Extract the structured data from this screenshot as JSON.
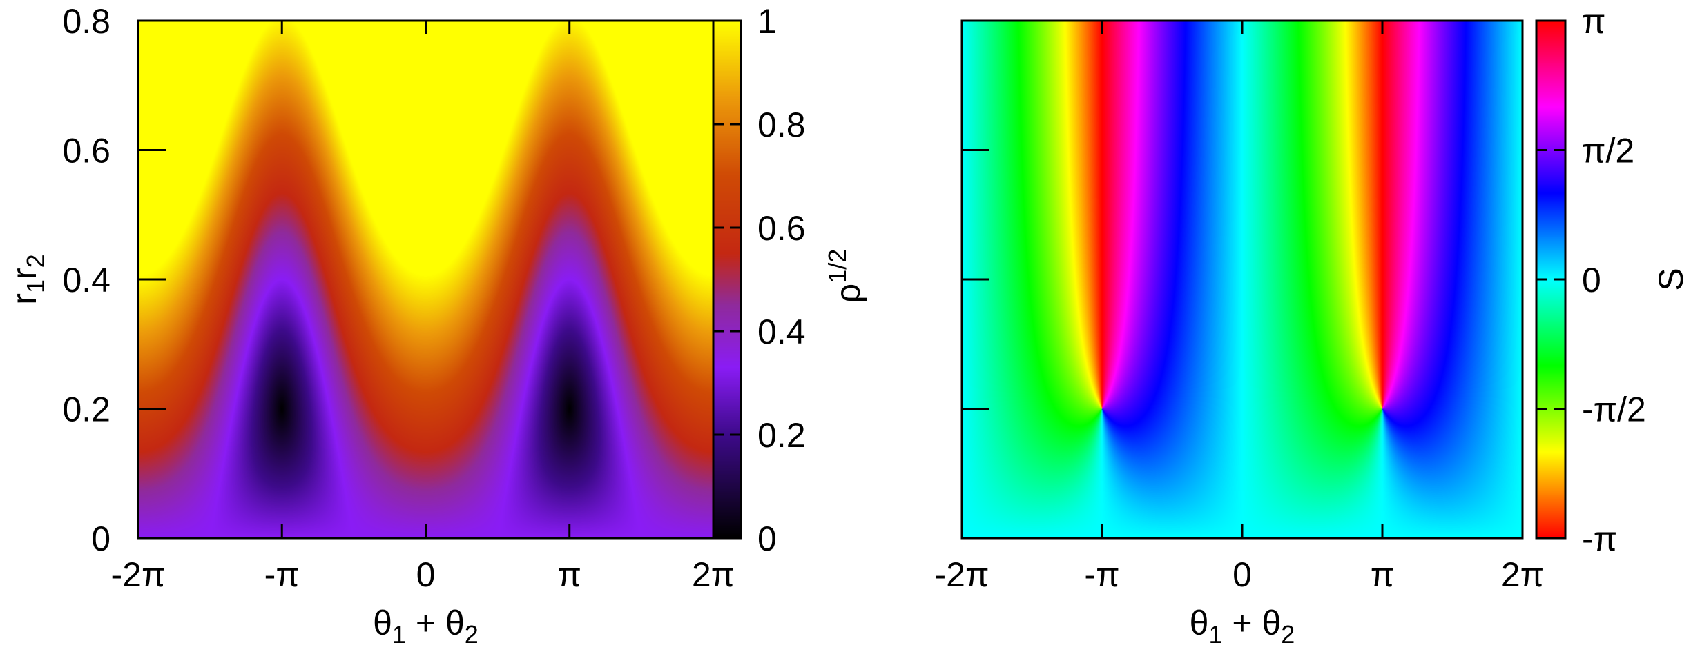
{
  "chart_data": [
    {
      "type": "heatmap",
      "colormap": "black-purple-red-yellow",
      "title": "",
      "xlabel": "θ1 + θ2",
      "xlabel_parts": {
        "a": "θ",
        "a_sub": "1",
        "plus": " + ",
        "b": "θ",
        "b_sub": "2"
      },
      "ylabel": "r1r2",
      "ylabel_parts": {
        "a": "r",
        "a_sub": "1",
        "b": "r",
        "b_sub": "2"
      },
      "xlim": [
        -6.2832,
        6.2832
      ],
      "ylim": [
        0,
        0.8
      ],
      "x_ticks": [
        {
          "value": -6.2832,
          "label": "-2π"
        },
        {
          "value": -3.1416,
          "label": "-π"
        },
        {
          "value": 0,
          "label": "0"
        },
        {
          "value": 3.1416,
          "label": "π"
        },
        {
          "value": 6.2832,
          "label": "2π"
        }
      ],
      "y_ticks": [
        {
          "value": 0,
          "label": "0"
        },
        {
          "value": 0.2,
          "label": "0.2"
        },
        {
          "value": 0.4,
          "label": "0.4"
        },
        {
          "value": 0.6,
          "label": "0.6"
        },
        {
          "value": 0.8,
          "label": "0.8"
        }
      ],
      "colorbar": {
        "label": "ρ1/2",
        "label_parts": {
          "base": "ρ",
          "sup": "1/2"
        },
        "range": [
          0,
          1
        ],
        "ticks": [
          {
            "value": 0,
            "label": "0"
          },
          {
            "value": 0.2,
            "label": "0.2"
          },
          {
            "value": 0.4,
            "label": "0.4"
          },
          {
            "value": 0.6,
            "label": "0.6"
          },
          {
            "value": 0.8,
            "label": "0.8"
          },
          {
            "value": 1,
            "label": "1"
          }
        ]
      },
      "colorbar_stops": [
        {
          "value": 0.0,
          "color": "#000000"
        },
        {
          "value": 0.2,
          "color": "#3d0a8a"
        },
        {
          "value": 0.33,
          "color": "#8a1cf5"
        },
        {
          "value": 0.45,
          "color": "#8f2a9c"
        },
        {
          "value": 0.55,
          "color": "#c42812"
        },
        {
          "value": 0.7,
          "color": "#cf4a05"
        },
        {
          "value": 0.85,
          "color": "#ec9a0a"
        },
        {
          "value": 1.0,
          "color": "#ffff00"
        }
      ],
      "features": {
        "minima_at": [
          {
            "x": -3.1416,
            "y": 0.2,
            "value": 0
          },
          {
            "x": 3.1416,
            "y": 0.2,
            "value": 0
          }
        ],
        "value_at_bottom": 0.33,
        "value_top_at_x_0": 1.0,
        "value_top_at_x_pi": 0.7
      }
    },
    {
      "type": "heatmap",
      "colormap": "cyclic-hsv",
      "title": "",
      "xlabel": "θ1 + θ2",
      "xlabel_parts": {
        "a": "θ",
        "a_sub": "1",
        "plus": " + ",
        "b": "θ",
        "b_sub": "2"
      },
      "ylabel": "",
      "xlim": [
        -6.2832,
        6.2832
      ],
      "ylim": [
        0,
        0.8
      ],
      "x_ticks": [
        {
          "value": -6.2832,
          "label": "-2π"
        },
        {
          "value": -3.1416,
          "label": "-π"
        },
        {
          "value": 0,
          "label": "0"
        },
        {
          "value": 3.1416,
          "label": "π"
        },
        {
          "value": 6.2832,
          "label": "2π"
        }
      ],
      "y_ticks": [
        {
          "value": 0,
          "label": ""
        },
        {
          "value": 0.2,
          "label": ""
        },
        {
          "value": 0.4,
          "label": ""
        },
        {
          "value": 0.6,
          "label": ""
        },
        {
          "value": 0.8,
          "label": ""
        }
      ],
      "colorbar": {
        "label": "S",
        "range": [
          -3.1416,
          3.1416
        ],
        "ticks": [
          {
            "value": -3.1416,
            "label": "-π"
          },
          {
            "value": -1.5708,
            "label": "-π/2"
          },
          {
            "value": 0,
            "label": "0"
          },
          {
            "value": 1.5708,
            "label": "π/2"
          },
          {
            "value": 3.1416,
            "label": "π"
          }
        ]
      },
      "colorbar_stops": [
        {
          "value": -3.1416,
          "color": "#ff0000"
        },
        {
          "value": -2.0944,
          "color": "#ffff00"
        },
        {
          "value": -1.0472,
          "color": "#00ff00"
        },
        {
          "value": 0.0,
          "color": "#00ffff"
        },
        {
          "value": 1.0472,
          "color": "#0000ff"
        },
        {
          "value": 2.0944,
          "color": "#ff00ff"
        },
        {
          "value": 3.1416,
          "color": "#ff0000"
        }
      ],
      "features": {
        "phase_singularities_at": [
          {
            "x": -3.1416,
            "y": 0.2
          },
          {
            "x": 3.1416,
            "y": 0.2
          }
        ],
        "value_at_bottom": 0
      }
    }
  ]
}
